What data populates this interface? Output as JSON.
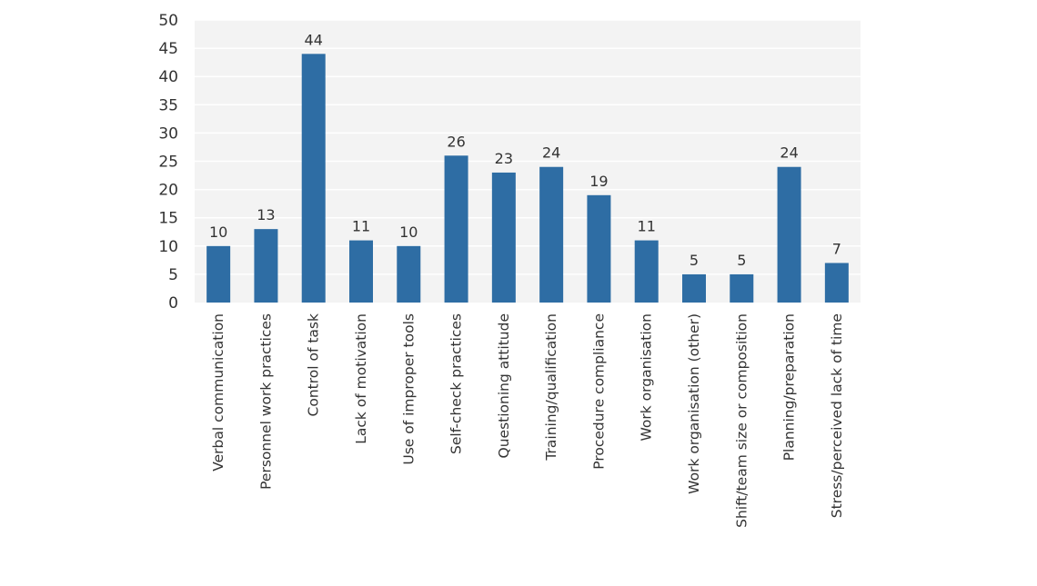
{
  "colors": {
    "bar": "#2e6da4",
    "plot_background": "#f3f3f3",
    "gridline": "#ffffff",
    "text": "#333333"
  },
  "chart_data": {
    "type": "bar",
    "title": "",
    "xlabel": "",
    "ylabel": "",
    "grid": true,
    "legend": "none",
    "ylim": [
      0,
      50
    ],
    "yticks": [
      0,
      5,
      10,
      15,
      20,
      25,
      30,
      35,
      40,
      45,
      50
    ],
    "categories": [
      "Verbal communication",
      "Personnel work practices",
      "Control of task",
      "Lack of motivation",
      "Use of improper tools",
      "Self-check practices",
      "Questioning attitude",
      "Training/qualification",
      "Procedure compliance",
      "Work organisation",
      "Work organisation (other)",
      "Shift/team size or composition",
      "Planning/preparation",
      "Stress/perceived lack of time"
    ],
    "values": [
      10,
      13,
      44,
      11,
      10,
      26,
      23,
      24,
      19,
      11,
      5,
      5,
      24,
      7
    ]
  }
}
